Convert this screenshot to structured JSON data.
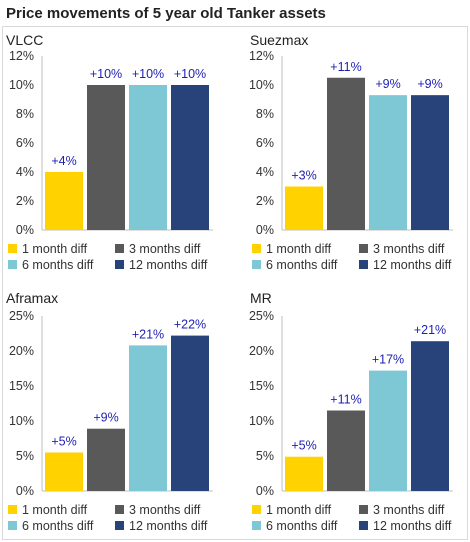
{
  "title": "Price movements of 5 year old Tanker assets",
  "colors": {
    "1 month diff": "#FFD200",
    "3 months diff": "#595959",
    "6 months diff": "#7EC8D6",
    "12 months diff": "#28427A",
    "data_label": "#1F1FB4"
  },
  "chart_data": [
    {
      "type": "bar",
      "title": "VLCC",
      "categories": [
        "1 month diff",
        "3 months diff",
        "6 months diff",
        "12 months diff"
      ],
      "values": [
        4,
        10,
        10,
        10
      ],
      "data_labels": [
        "+4%",
        "+10%",
        "+10%",
        "+10%"
      ],
      "ylim": [
        0,
        12
      ],
      "yticks": [
        "0%",
        "2%",
        "4%",
        "6%",
        "8%",
        "10%",
        "12%"
      ],
      "grid": false,
      "legend": [
        "1 month diff",
        "3 months diff",
        "6 months diff",
        "12 months diff"
      ],
      "legend_position": "bottom"
    },
    {
      "type": "bar",
      "title": "Suezmax",
      "categories": [
        "1 month diff",
        "3 months diff",
        "6 months diff",
        "12 months diff"
      ],
      "values": [
        3,
        10.5,
        9.3,
        9.3
      ],
      "data_labels": [
        "+3%",
        "+11%",
        "+9%",
        "+9%"
      ],
      "ylim": [
        0,
        12
      ],
      "yticks": [
        "0%",
        "2%",
        "4%",
        "6%",
        "8%",
        "10%",
        "12%"
      ],
      "grid": false,
      "legend": [
        "1 month diff",
        "3 months diff",
        "6 months diff",
        "12 months diff"
      ],
      "legend_position": "bottom"
    },
    {
      "type": "bar",
      "title": "Aframax",
      "categories": [
        "1 month diff",
        "3 months diff",
        "6 months diff",
        "12 months diff"
      ],
      "values": [
        5.5,
        8.9,
        20.8,
        22.2
      ],
      "data_labels": [
        "+5%",
        "+9%",
        "+21%",
        "+22%"
      ],
      "ylim": [
        0,
        25
      ],
      "yticks": [
        "0%",
        "5%",
        "10%",
        "15%",
        "20%",
        "25%"
      ],
      "grid": false,
      "legend": [
        "1 month diff",
        "3 months diff",
        "6 months diff",
        "12 months diff"
      ],
      "legend_position": "bottom"
    },
    {
      "type": "bar",
      "title": "MR",
      "categories": [
        "1 month diff",
        "3 months diff",
        "6 months diff",
        "12 months diff"
      ],
      "values": [
        4.9,
        11.5,
        17.2,
        21.4
      ],
      "data_labels": [
        "+5%",
        "+11%",
        "+17%",
        "+21%"
      ],
      "ylim": [
        0,
        25
      ],
      "yticks": [
        "0%",
        "5%",
        "10%",
        "15%",
        "20%",
        "25%"
      ],
      "grid": false,
      "legend": [
        "1 month diff",
        "3 months diff",
        "6 months diff",
        "12 months diff"
      ],
      "legend_position": "bottom"
    }
  ]
}
